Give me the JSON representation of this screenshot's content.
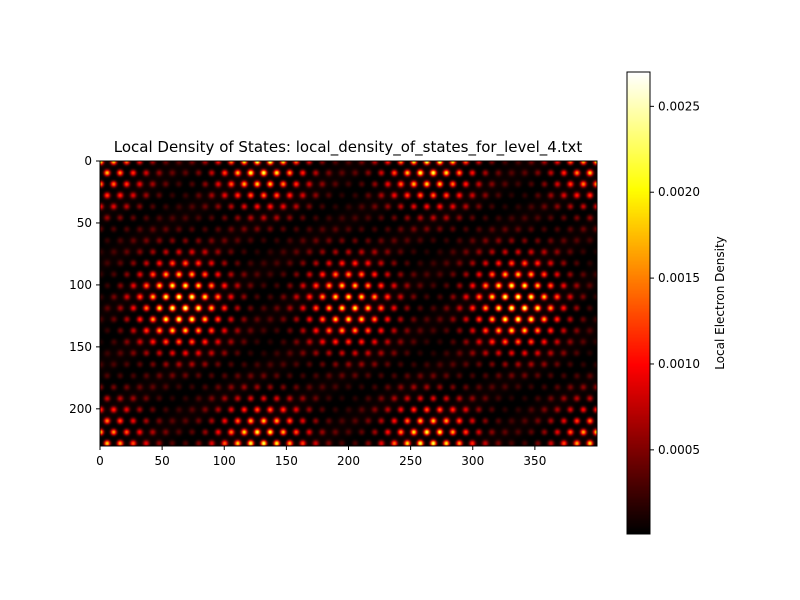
{
  "chart_data": {
    "type": "heatmap",
    "title": "Local Density of States: local_density_of_states_for_level_4.txt",
    "xlabel": "",
    "ylabel": "",
    "xlim": [
      0,
      400
    ],
    "ylim": [
      230,
      0
    ],
    "x_ticks": [
      0,
      50,
      100,
      150,
      200,
      250,
      300,
      350
    ],
    "y_ticks": [
      0,
      50,
      100,
      150,
      200
    ],
    "grid": false,
    "colormap": "hot",
    "colorbar": {
      "label": "Local Electron Density",
      "range": [
        1e-05,
        0.0027
      ],
      "ticks": [
        "0.0005",
        "0.0010",
        "0.0015",
        "0.0020",
        "0.0025"
      ],
      "tick_values": [
        0.0005,
        0.001,
        0.0015,
        0.002,
        0.0025
      ]
    },
    "hot_spots": [
      {
        "x": 65,
        "y": 115,
        "peak": 0.0026
      },
      {
        "x": 200,
        "y": 115,
        "peak": 0.0022
      },
      {
        "x": 335,
        "y": 115,
        "peak": 0.0026
      },
      {
        "x": 130,
        "y": 0,
        "peak": 0.0024
      },
      {
        "x": 265,
        "y": 0,
        "peak": 0.0024
      },
      {
        "x": 130,
        "y": 230,
        "peak": 0.0024
      },
      {
        "x": 265,
        "y": 230,
        "peak": 0.0024
      },
      {
        "x": 0,
        "y": 0,
        "peak": 0.002
      },
      {
        "x": 400,
        "y": 0,
        "peak": 0.002
      },
      {
        "x": 0,
        "y": 230,
        "peak": 0.002
      },
      {
        "x": 400,
        "y": 230,
        "peak": 0.002
      }
    ],
    "lattice_spacing": 10.5,
    "spot_radius": 42
  }
}
